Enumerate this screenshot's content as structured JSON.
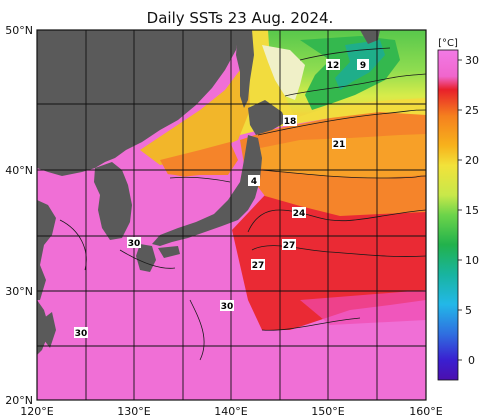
{
  "title": "Daily SSTs 23 Aug. 2024.",
  "map": {
    "lat_ticks": [
      "50°N",
      "40°N",
      "30°N",
      "20°N"
    ],
    "lon_ticks": [
      "120°E",
      "130°E",
      "140°E",
      "150°E",
      "160°E"
    ],
    "land_color": "#5a5a5a",
    "grid_color": "#000000"
  },
  "contour_labels": [
    "12",
    "9",
    "18",
    "21",
    "4",
    "24",
    "30",
    "27",
    "27",
    "30",
    "30"
  ],
  "colorbar": {
    "unit": "[°C]",
    "ticks": [
      "30",
      "25",
      "20",
      "15",
      "10",
      "5",
      "0"
    ],
    "stops": [
      {
        "v": 32,
        "color": "#f27ae6"
      },
      {
        "v": 29,
        "color": "#f066cc"
      },
      {
        "v": 27.5,
        "color": "#e8202a"
      },
      {
        "v": 25,
        "color": "#f5801e"
      },
      {
        "v": 22,
        "color": "#f7b21c"
      },
      {
        "v": 20,
        "color": "#f2e23a"
      },
      {
        "v": 17,
        "color": "#c8e84a"
      },
      {
        "v": 15,
        "color": "#6cd44a"
      },
      {
        "v": 12,
        "color": "#22b24c"
      },
      {
        "v": 9,
        "color": "#18b4a0"
      },
      {
        "v": 6,
        "color": "#22b8e8"
      },
      {
        "v": 3,
        "color": "#2f6fe0"
      },
      {
        "v": 0,
        "color": "#3a1fd0"
      },
      {
        "v": -2,
        "color": "#4b0fae"
      }
    ]
  }
}
